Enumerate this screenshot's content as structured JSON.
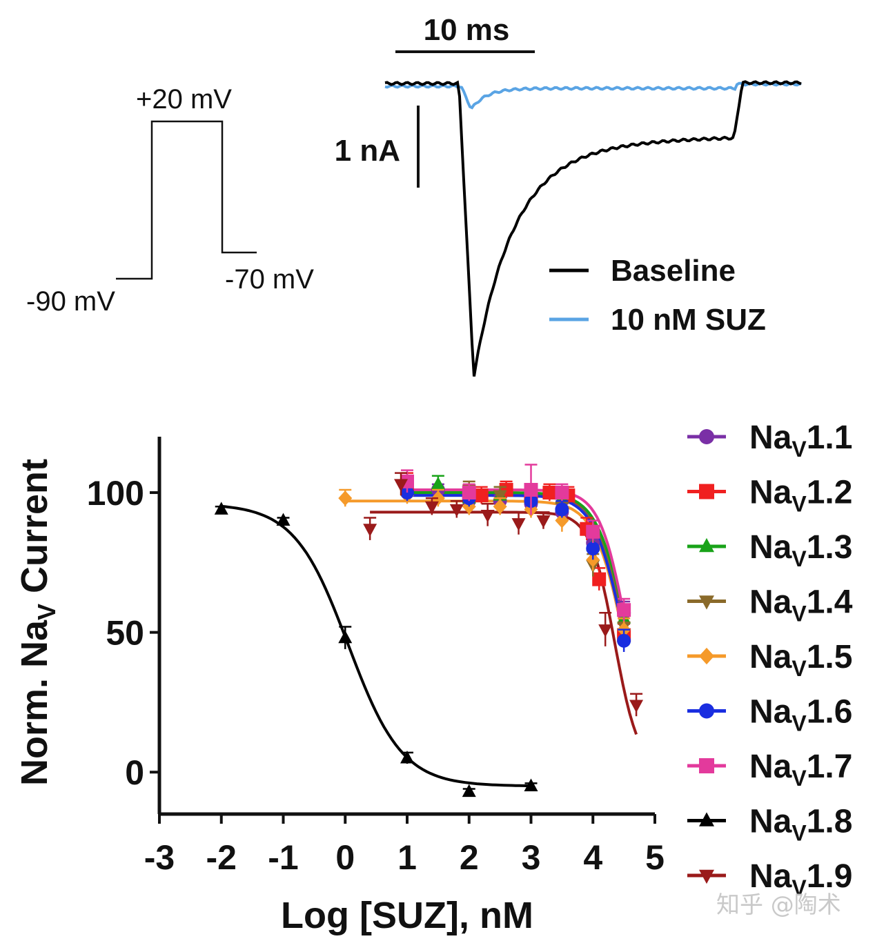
{
  "watermark": "知乎 @陶术",
  "voltage_protocol": {
    "step_label": "+20 mV",
    "holding_label": "-90 mV",
    "return_label": "-70 mV"
  },
  "trace_panel": {
    "time_scale_label": "10 ms",
    "current_scale_label": "1 nA",
    "legend": [
      {
        "label": "Baseline",
        "color": "#000000"
      },
      {
        "label": "10 nM SUZ",
        "color": "#5aa4e4"
      }
    ]
  },
  "chart_data": [
    {
      "type": "scatter",
      "title": "",
      "xlabel": "Log [SUZ], nM",
      "ylabel_main": "Norm. Na",
      "ylabel_sub": "V",
      "ylabel_tail": " Current",
      "xlim": [
        -3,
        5
      ],
      "ylim": [
        -15,
        120
      ],
      "x_ticks": [
        -3,
        -2,
        -1,
        0,
        1,
        2,
        3,
        4,
        5
      ],
      "y_ticks": [
        0,
        50,
        100
      ],
      "legend_position": "right",
      "series": [
        {
          "name": "1.1",
          "name_prefix": "Na",
          "name_sub": "V",
          "color": "#7a2fa6",
          "marker": "circle",
          "x": [
            1.0,
            1.5,
            2.0,
            2.5,
            3.0,
            3.5,
            4.0,
            4.5
          ],
          "y": [
            102,
            101,
            97,
            97,
            96,
            93,
            82,
            57
          ],
          "err": [
            3,
            2,
            3,
            2,
            3,
            3,
            4,
            4
          ],
          "fit": {
            "top": 99.5,
            "bottom": 0,
            "ic50": 4.55,
            "hill": 1.8
          }
        },
        {
          "name": "1.2",
          "name_prefix": "Na",
          "name_sub": "V",
          "color": "#f02020",
          "marker": "square",
          "x": [
            1.0,
            2.2,
            2.6,
            3.0,
            3.3,
            3.6,
            3.9,
            4.1,
            4.5
          ],
          "y": [
            103,
            99,
            101,
            99,
            100,
            99,
            87,
            69,
            49
          ],
          "err": [
            4,
            3,
            3,
            3,
            3,
            3,
            4,
            4,
            4
          ],
          "fit": {
            "top": 100,
            "bottom": 0,
            "ic50": 4.48,
            "hill": 1.8
          }
        },
        {
          "name": "1.3",
          "name_prefix": "Na",
          "name_sub": "V",
          "color": "#19a319",
          "marker": "triangle-up",
          "x": [
            1.0,
            1.5,
            2.0,
            2.5,
            3.0,
            3.5,
            4.0,
            4.5
          ],
          "y": [
            101,
            103,
            98,
            99,
            98,
            98,
            81,
            55
          ],
          "err": [
            3,
            3,
            3,
            3,
            3,
            3,
            4,
            4
          ],
          "fit": {
            "top": 100,
            "bottom": 0,
            "ic50": 4.55,
            "hill": 1.8
          }
        },
        {
          "name": "1.4",
          "name_prefix": "Na",
          "name_sub": "V",
          "color": "#8a6a2a",
          "marker": "triangle-down",
          "x": [
            1.0,
            2.0,
            2.5,
            3.0,
            3.5,
            4.0,
            4.5
          ],
          "y": [
            100,
            101,
            99,
            98,
            95,
            74,
            52
          ],
          "err": [
            3,
            3,
            3,
            3,
            3,
            4,
            4
          ],
          "fit": {
            "top": 99,
            "bottom": 0,
            "ic50": 4.52,
            "hill": 1.8
          }
        },
        {
          "name": "1.5",
          "name_prefix": "Na",
          "name_sub": "V",
          "color": "#f59a2a",
          "marker": "diamond",
          "x": [
            0.0,
            1.0,
            1.5,
            2.0,
            2.5,
            3.0,
            3.5,
            4.0,
            4.5
          ],
          "y": [
            98,
            99,
            98,
            95,
            95,
            94,
            90,
            76,
            51
          ],
          "err": [
            3,
            3,
            3,
            3,
            3,
            3,
            4,
            4,
            4
          ],
          "fit": {
            "top": 97,
            "bottom": 0,
            "ic50": 4.5,
            "hill": 1.8
          }
        },
        {
          "name": "1.6",
          "name_prefix": "Na",
          "name_sub": "V",
          "color": "#1a2ee0",
          "marker": "circle",
          "x": [
            1.0,
            2.0,
            3.0,
            3.5,
            4.0,
            4.5
          ],
          "y": [
            100,
            98,
            97,
            94,
            80,
            47
          ],
          "err": [
            3,
            3,
            3,
            3,
            4,
            4
          ],
          "fit": {
            "top": 99,
            "bottom": 0,
            "ic50": 4.5,
            "hill": 1.8
          }
        },
        {
          "name": "1.7",
          "name_prefix": "Na",
          "name_sub": "V",
          "color": "#e33a9c",
          "marker": "square",
          "x": [
            1.0,
            2.0,
            3.0,
            3.5,
            4.0,
            4.5
          ],
          "y": [
            104,
            100,
            101,
            100,
            86,
            58
          ],
          "err": [
            4,
            3,
            9,
            3,
            4,
            4
          ],
          "fit": {
            "top": 101,
            "bottom": 0,
            "ic50": 4.55,
            "hill": 2.0
          }
        },
        {
          "name": "1.8",
          "name_prefix": "Na",
          "name_sub": "V",
          "color": "#000000",
          "marker": "triangle-up",
          "x": [
            -2,
            -1,
            0,
            1,
            2,
            3
          ],
          "y": [
            94,
            90,
            48,
            5,
            -7,
            -5
          ],
          "err": [
            1,
            1,
            4,
            2,
            1,
            1
          ],
          "fit": {
            "top": 96,
            "bottom": -5,
            "ic50": 0.05,
            "hill": 1.0
          }
        },
        {
          "name": "1.9",
          "name_prefix": "Na",
          "name_sub": "V",
          "color": "#9a1a1a",
          "marker": "triangle-down",
          "x": [
            0.4,
            0.9,
            1.4,
            1.8,
            2.3,
            2.8,
            3.2,
            4.2,
            4.7
          ],
          "y": [
            87,
            103,
            95,
            94,
            92,
            89,
            90,
            51,
            24
          ],
          "err": [
            4,
            4,
            3,
            3,
            4,
            4,
            3,
            6,
            4
          ],
          "fit": {
            "top": 93,
            "bottom": 0,
            "ic50": 4.35,
            "hill": 2.2
          }
        }
      ]
    }
  ]
}
